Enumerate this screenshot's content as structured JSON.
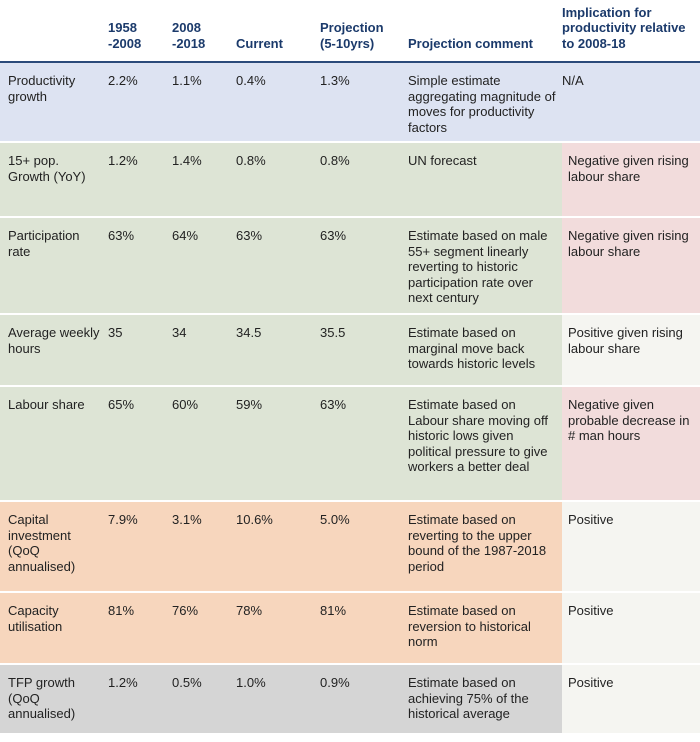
{
  "headers": [
    "",
    "1958\n-2008",
    "2008\n-2018",
    "Current",
    "Projection\n(5-10yrs)",
    "Projection comment",
    "Implication for productivity relative to 2008-18"
  ],
  "rows": [
    {
      "label": "Productivity growth",
      "v1958": "2.2%",
      "v2008": "1.1%",
      "current": "0.4%",
      "projection": "1.3%",
      "comment": "Simple estimate aggregating magnitude of moves for productivity factors",
      "implication": "N/A",
      "band": "blue",
      "imp_style": "na"
    },
    {
      "label": "15+ pop. Growth (YoY)",
      "v1958": "1.2%",
      "v2008": "1.4%",
      "current": "0.8%",
      "projection": "0.8%",
      "comment": "UN forecast",
      "implication": "Negative given rising labour share",
      "band": "green",
      "imp_style": "neg"
    },
    {
      "label": "Participation rate",
      "v1958": "63%",
      "v2008": "64%",
      "current": "63%",
      "projection": "63%",
      "comment": "Estimate based on male 55+ segment linearly reverting to historic participation rate over next century",
      "implication": "Negative given rising labour share",
      "band": "green",
      "imp_style": "neg"
    },
    {
      "label": "Average weekly hours",
      "v1958": "35",
      "v2008": "34",
      "current": "34.5",
      "projection": "35.5",
      "comment": "Estimate based on marginal move back towards historic levels",
      "implication": "Positive given rising labour share",
      "band": "green",
      "imp_style": "pos"
    },
    {
      "label": "Labour share",
      "v1958": "65%",
      "v2008": "60%",
      "current": "59%",
      "projection": "63%",
      "comment": "Estimate based on Labour share moving off historic lows given political pressure to give workers a better deal",
      "implication": "Negative given probable decrease in # man hours",
      "band": "green",
      "imp_style": "neg"
    },
    {
      "label": "Capital investment (QoQ annualised)",
      "v1958": "7.9%",
      "v2008": "3.1%",
      "current": "10.6%",
      "projection": "5.0%",
      "comment": "Estimate based on reverting to the upper bound of the 1987-2018 period",
      "implication": "Positive",
      "band": "orange",
      "imp_style": "pos"
    },
    {
      "label": "Capacity utilisation",
      "v1958": "81%",
      "v2008": "76%",
      "current": "78%",
      "projection": "81%",
      "comment": "Estimate based on reversion to historical norm",
      "implication": "Positive",
      "band": "orange",
      "imp_style": "pos"
    },
    {
      "label": "TFP growth (QoQ annualised)",
      "v1958": "1.2%",
      "v2008": "0.5%",
      "current": "1.0%",
      "projection": "0.9%",
      "comment": "Estimate based on achieving 75% of the historical average",
      "implication": "Positive",
      "band": "grey",
      "imp_style": "pos"
    }
  ],
  "band_colors": {
    "blue": "#dde3f2",
    "green": "#dde4d5",
    "orange": "#f7d6bd",
    "grey": "#d5d5d5",
    "negative": "#f2dcdc",
    "positive": "#f5f5f1",
    "header_text": "#1b3a6b"
  }
}
